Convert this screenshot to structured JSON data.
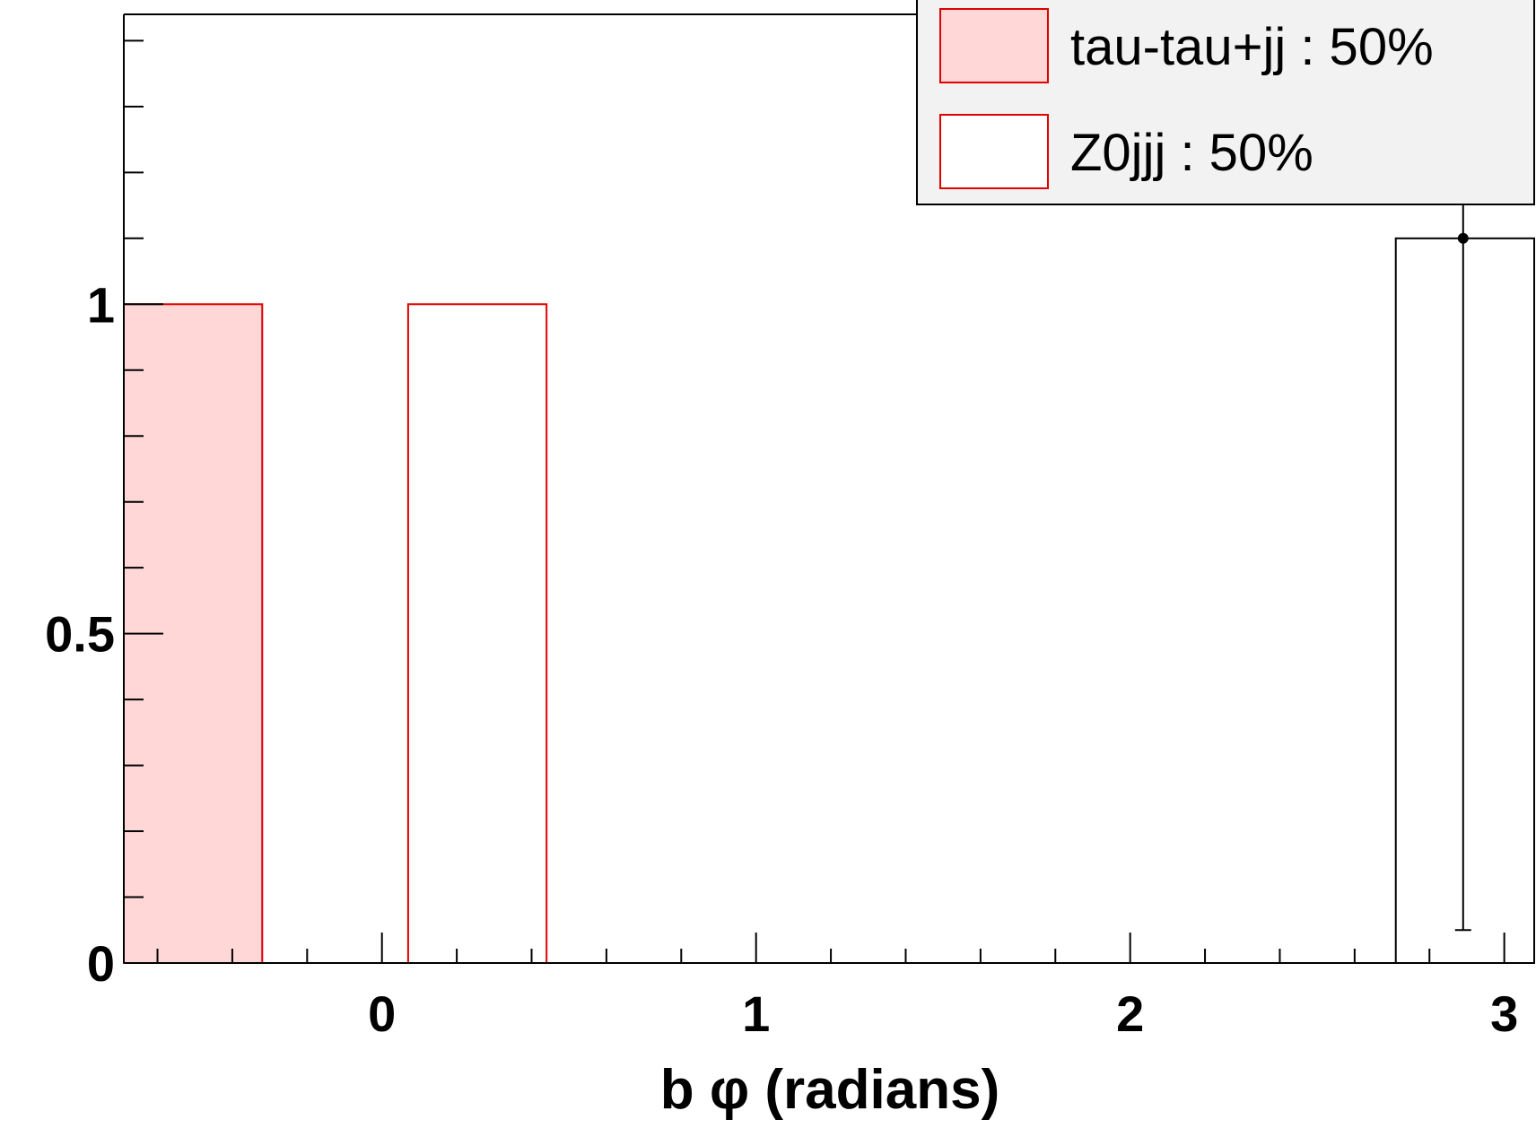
{
  "chart_data": {
    "type": "bar",
    "title": "",
    "xlabel": "b φ (radians)",
    "ylabel": "",
    "xlim": [
      -0.69,
      3.08
    ],
    "ylim": [
      0,
      1.44
    ],
    "x_ticks": [
      0,
      1,
      2,
      3
    ],
    "x_tick_labels": [
      "0",
      "1",
      "2",
      "3"
    ],
    "y_ticks": [
      0,
      0.5,
      1
    ],
    "y_tick_labels": [
      "0",
      "0.5",
      "1"
    ],
    "grid": false,
    "legend": "top-right",
    "series": [
      {
        "name": "tau-tau+jj : 50%",
        "style": "filled-histogram",
        "fill": "#ffd7d7",
        "line": "#e00000",
        "bins": [
          {
            "x0": -0.69,
            "x1": -0.32,
            "value": 1.0
          }
        ]
      },
      {
        "name": "Z0jjj : 50%",
        "style": "hollow-histogram",
        "fill": "#ffffff",
        "line": "#e00000",
        "bins": [
          {
            "x0": 0.07,
            "x1": 0.44,
            "value": 1.0
          }
        ]
      },
      {
        "name": "",
        "style": "hollow-histogram",
        "fill": "none",
        "line": "#000000",
        "bins": [
          {
            "x0": 2.71,
            "x1": 3.08,
            "value": 1.1
          }
        ]
      },
      {
        "name": "",
        "style": "data-point",
        "line": "#000000",
        "points": [
          {
            "x": 2.89,
            "y": 1.1,
            "y_low": 0.05,
            "y_high": 1.44
          }
        ]
      }
    ]
  }
}
